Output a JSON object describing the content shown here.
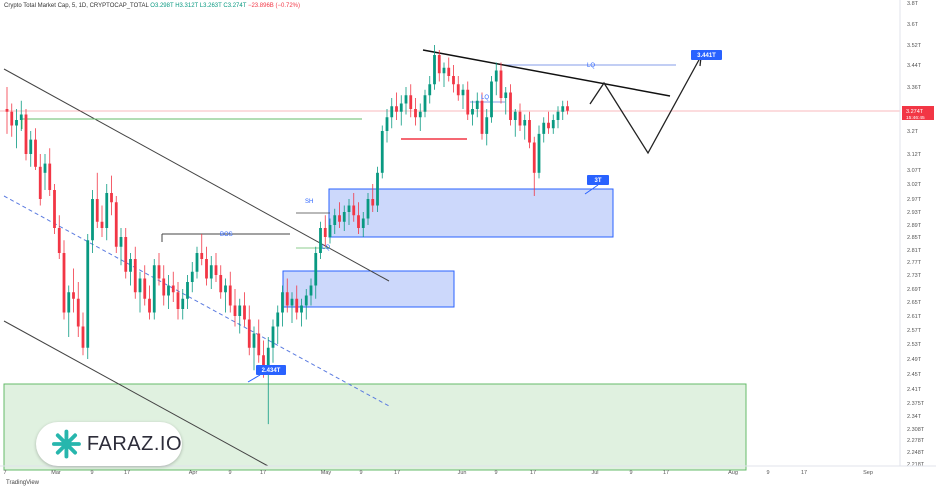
{
  "header": {
    "title": "Crypto Total Market Cap, 5, 1D, CRYPTOCAP_TOTAL",
    "o": "O3.298T",
    "h": "H3.312T",
    "l": "L3.263T",
    "c": "C3.274T",
    "chg": "−23.896B (−0.72%)"
  },
  "brand": {
    "tradingview": "TradingView",
    "watermark": "FARAZ.IO"
  },
  "colors": {
    "up": "#089981",
    "down": "#f23645",
    "accent": "#2962ff",
    "zone_blue": "#8fa9f7",
    "zone_green": "#a5d6a7",
    "price_line": "#f23645"
  },
  "chart_data": {
    "type": "candlestick",
    "title": "",
    "xlabel": "",
    "ylabel": "",
    "ylim": [
      2.2,
      3.8
    ],
    "y_ticks": [
      "3.8T",
      "3.6T",
      "3.52T",
      "3.44T",
      "3.36T",
      "3.2T",
      "3.12T",
      "3.07T",
      "3.02T",
      "2.97T",
      "2.93T",
      "2.89T",
      "2.85T",
      "2.81T",
      "2.77T",
      "2.73T",
      "2.69T",
      "2.65T",
      "2.61T",
      "2.57T",
      "2.53T",
      "2.49T",
      "2.45T",
      "2.41T",
      "2.375T",
      "2.34T",
      "2.308T",
      "2.278T",
      "2.248T",
      "2.218T"
    ],
    "x_ticks": [
      "7",
      "Mar",
      "9",
      "17",
      "Apr",
      "9",
      "17",
      "May",
      "9",
      "17",
      "Jun",
      "9",
      "17",
      "Jul",
      "9",
      "17",
      "Aug",
      "9",
      "17",
      "Sep"
    ],
    "last_price_label": "3.274T",
    "countdown_label": "15:46:45",
    "annotations": {
      "target_high": "3.441T",
      "zone_mid": "3T",
      "low_label": "2.434T",
      "bos": "BOS",
      "sh": "SH",
      "lq_low": "LQ",
      "lq_mid": "LQ",
      "lq_top": "LQ"
    },
    "ohlc": [
      [
        3.28,
        3.36,
        3.19,
        3.27
      ],
      [
        3.27,
        3.3,
        3.18,
        3.22
      ],
      [
        3.22,
        3.28,
        3.14,
        3.24
      ],
      [
        3.24,
        3.31,
        3.2,
        3.26
      ],
      [
        3.26,
        3.28,
        3.1,
        3.12
      ],
      [
        3.12,
        3.2,
        3.08,
        3.17
      ],
      [
        3.17,
        3.21,
        3.07,
        3.08
      ],
      [
        3.08,
        3.12,
        2.95,
        2.97
      ],
      [
        3.06,
        3.12,
        3.0,
        3.09
      ],
      [
        3.09,
        3.14,
        2.98,
        3.0
      ],
      [
        3.0,
        3.02,
        2.86,
        2.88
      ],
      [
        2.88,
        2.92,
        2.78,
        2.8
      ],
      [
        2.8,
        2.84,
        2.6,
        2.62
      ],
      [
        2.62,
        2.7,
        2.55,
        2.68
      ],
      [
        2.68,
        2.75,
        2.62,
        2.66
      ],
      [
        2.66,
        2.71,
        2.55,
        2.58
      ],
      [
        2.58,
        2.62,
        2.5,
        2.52
      ],
      [
        2.52,
        2.86,
        2.49,
        2.84
      ],
      [
        2.84,
        3.0,
        2.8,
        2.97
      ],
      [
        2.97,
        3.06,
        2.88,
        2.9
      ],
      [
        2.9,
        2.95,
        2.85,
        2.88
      ],
      [
        2.88,
        3.02,
        2.84,
        2.99
      ],
      [
        2.99,
        3.05,
        2.92,
        2.96
      ],
      [
        2.96,
        2.98,
        2.8,
        2.82
      ],
      [
        2.82,
        2.88,
        2.76,
        2.85
      ],
      [
        2.85,
        2.88,
        2.72,
        2.74
      ],
      [
        2.74,
        2.8,
        2.7,
        2.78
      ],
      [
        2.78,
        2.82,
        2.66,
        2.68
      ],
      [
        2.68,
        2.74,
        2.62,
        2.72
      ],
      [
        2.72,
        2.76,
        2.64,
        2.66
      ],
      [
        2.66,
        2.7,
        2.6,
        2.62
      ],
      [
        2.62,
        2.78,
        2.6,
        2.76
      ],
      [
        2.76,
        2.8,
        2.7,
        2.72
      ],
      [
        2.72,
        2.76,
        2.64,
        2.67
      ],
      [
        2.67,
        2.73,
        2.63,
        2.7
      ],
      [
        2.7,
        2.74,
        2.65,
        2.68
      ],
      [
        2.68,
        2.71,
        2.6,
        2.63
      ],
      [
        2.63,
        2.69,
        2.6,
        2.66
      ],
      [
        2.66,
        2.73,
        2.63,
        2.71
      ],
      [
        2.71,
        2.77,
        2.68,
        2.74
      ],
      [
        2.74,
        2.82,
        2.72,
        2.8
      ],
      [
        2.8,
        2.86,
        2.76,
        2.78
      ],
      [
        2.78,
        2.82,
        2.7,
        2.72
      ],
      [
        2.72,
        2.79,
        2.69,
        2.76
      ],
      [
        2.76,
        2.8,
        2.71,
        2.73
      ],
      [
        2.73,
        2.76,
        2.66,
        2.68
      ],
      [
        2.68,
        2.72,
        2.62,
        2.7
      ],
      [
        2.7,
        2.74,
        2.62,
        2.64
      ],
      [
        2.64,
        2.69,
        2.58,
        2.61
      ],
      [
        2.61,
        2.66,
        2.56,
        2.64
      ],
      [
        2.64,
        2.68,
        2.58,
        2.6
      ],
      [
        2.6,
        2.64,
        2.5,
        2.52
      ],
      [
        2.52,
        2.58,
        2.46,
        2.56
      ],
      [
        2.56,
        2.6,
        2.48,
        2.5
      ],
      [
        2.5,
        2.54,
        2.44,
        2.45
      ],
      [
        2.45,
        2.55,
        2.32,
        2.52
      ],
      [
        2.52,
        2.6,
        2.48,
        2.58
      ],
      [
        2.58,
        2.64,
        2.53,
        2.62
      ],
      [
        2.62,
        2.7,
        2.58,
        2.68
      ],
      [
        2.68,
        2.72,
        2.62,
        2.64
      ],
      [
        2.64,
        2.68,
        2.59,
        2.66
      ],
      [
        2.66,
        2.7,
        2.6,
        2.62
      ],
      [
        2.62,
        2.66,
        2.58,
        2.64
      ],
      [
        2.64,
        2.69,
        2.6,
        2.67
      ],
      [
        2.67,
        2.72,
        2.64,
        2.7
      ],
      [
        2.7,
        2.82,
        2.66,
        2.8
      ],
      [
        2.8,
        2.9,
        2.78,
        2.88
      ],
      [
        2.88,
        2.92,
        2.82,
        2.85
      ],
      [
        2.85,
        2.91,
        2.83,
        2.89
      ],
      [
        2.89,
        2.94,
        2.86,
        2.92
      ],
      [
        2.92,
        2.96,
        2.88,
        2.9
      ],
      [
        2.9,
        2.95,
        2.87,
        2.93
      ],
      [
        2.93,
        2.97,
        2.89,
        2.95
      ],
      [
        2.95,
        2.99,
        2.9,
        2.92
      ],
      [
        2.92,
        2.96,
        2.86,
        2.88
      ],
      [
        2.88,
        2.93,
        2.85,
        2.91
      ],
      [
        2.91,
        2.99,
        2.89,
        2.97
      ],
      [
        2.97,
        3.02,
        2.93,
        2.95
      ],
      [
        2.95,
        3.08,
        2.93,
        3.06
      ],
      [
        3.06,
        3.22,
        3.04,
        3.2
      ],
      [
        3.2,
        3.28,
        3.16,
        3.25
      ],
      [
        3.25,
        3.32,
        3.21,
        3.29
      ],
      [
        3.29,
        3.34,
        3.24,
        3.27
      ],
      [
        3.27,
        3.33,
        3.22,
        3.3
      ],
      [
        3.3,
        3.36,
        3.26,
        3.33
      ],
      [
        3.33,
        3.37,
        3.25,
        3.28
      ],
      [
        3.28,
        3.32,
        3.22,
        3.25
      ],
      [
        3.25,
        3.3,
        3.2,
        3.27
      ],
      [
        3.27,
        3.35,
        3.25,
        3.33
      ],
      [
        3.33,
        3.4,
        3.3,
        3.37
      ],
      [
        3.37,
        3.52,
        3.35,
        3.48
      ],
      [
        3.48,
        3.5,
        3.38,
        3.41
      ],
      [
        3.41,
        3.45,
        3.36,
        3.43
      ],
      [
        3.43,
        3.47,
        3.38,
        3.4
      ],
      [
        3.4,
        3.44,
        3.34,
        3.37
      ],
      [
        3.37,
        3.4,
        3.31,
        3.33
      ],
      [
        3.33,
        3.37,
        3.28,
        3.35
      ],
      [
        3.35,
        3.38,
        3.24,
        3.26
      ],
      [
        3.26,
        3.31,
        3.22,
        3.28
      ],
      [
        3.28,
        3.34,
        3.25,
        3.31
      ],
      [
        3.31,
        3.34,
        3.17,
        3.19
      ],
      [
        3.19,
        3.28,
        3.15,
        3.25
      ],
      [
        3.25,
        3.4,
        3.23,
        3.38
      ],
      [
        3.38,
        3.45,
        3.33,
        3.42
      ],
      [
        3.42,
        3.45,
        3.3,
        3.32
      ],
      [
        3.32,
        3.36,
        3.26,
        3.34
      ],
      [
        3.34,
        3.37,
        3.22,
        3.24
      ],
      [
        3.24,
        3.28,
        3.18,
        3.27
      ],
      [
        3.27,
        3.3,
        3.2,
        3.22
      ],
      [
        3.22,
        3.26,
        3.17,
        3.24
      ],
      [
        3.24,
        3.27,
        3.14,
        3.16
      ],
      [
        3.16,
        3.18,
        2.98,
        3.06
      ],
      [
        3.06,
        3.22,
        3.04,
        3.19
      ],
      [
        3.19,
        3.25,
        3.16,
        3.23
      ],
      [
        3.23,
        3.27,
        3.19,
        3.21
      ],
      [
        3.21,
        3.26,
        3.19,
        3.24
      ],
      [
        3.24,
        3.29,
        3.21,
        3.27
      ],
      [
        3.27,
        3.31,
        3.24,
        3.29
      ],
      [
        3.29,
        3.31,
        3.26,
        3.274
      ]
    ]
  }
}
